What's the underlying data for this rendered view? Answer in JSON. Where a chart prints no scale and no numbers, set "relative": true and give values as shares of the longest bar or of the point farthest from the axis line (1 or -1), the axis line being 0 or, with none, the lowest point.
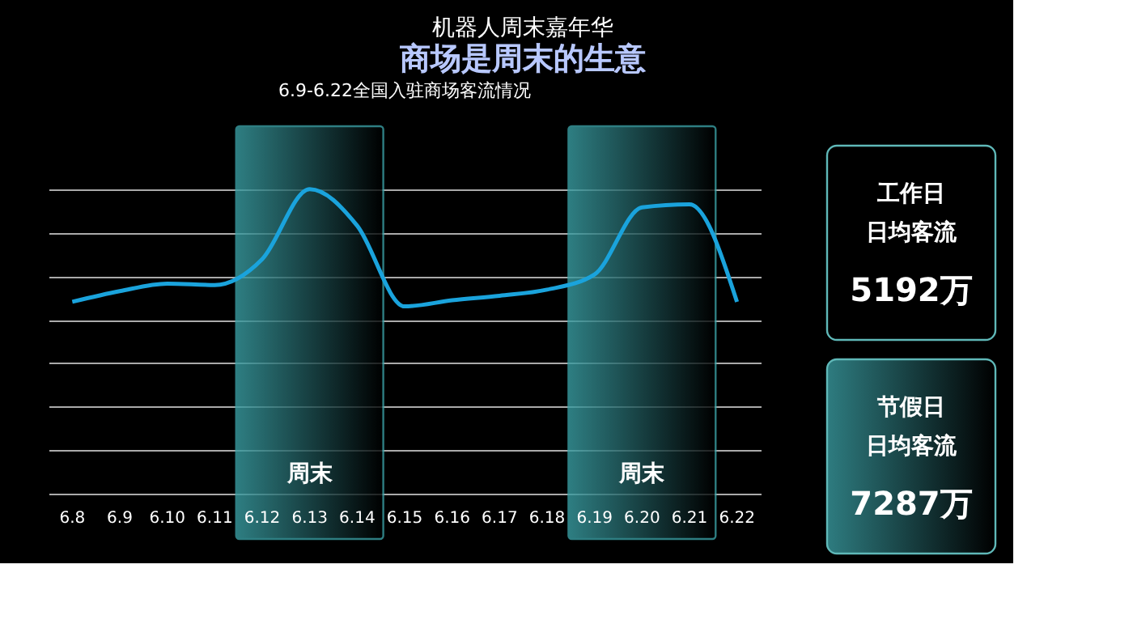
{
  "chart_data": [
    {
      "type": "line",
      "title": "机器人周末嘉年华",
      "subtitle": "商场是周末的生意",
      "annotations": [
        "6.9-6.22全国入驻商场客流情况"
      ],
      "categories": [
        "6.8",
        "6.9",
        "6.10",
        "6.11",
        "6.12",
        "6.13",
        "6.14",
        "6.15",
        "6.16",
        "6.17",
        "6.18",
        "6.19",
        "6.20",
        "6.21",
        "6.22"
      ],
      "relative": true,
      "grid": "y",
      "line_style": "solid",
      "marker": "none",
      "series": [
        {
          "color": "#1aa3dc",
          "values": [
            0.63,
            0.665,
            0.69,
            0.685,
            0.77,
            1,
            0.88,
            0.615,
            0.635,
            0.65,
            0.67,
            0.72,
            0.94,
            0.95,
            0.63
          ]
        }
      ],
      "bands": [
        {
          "axis": "x",
          "from": "6.12",
          "to": "6.14",
          "label": "周末",
          "color": "#3a9ea3"
        },
        {
          "axis": "x",
          "from": "6.19",
          "to": "6.21",
          "label": "周末",
          "color": "#3a9ea3"
        }
      ]
    },
    {
      "type": "other",
      "annotations": [
        "工作日",
        "日均客流",
        "5192万",
        "节假日",
        "日均客流",
        "7287万"
      ]
    }
  ]
}
